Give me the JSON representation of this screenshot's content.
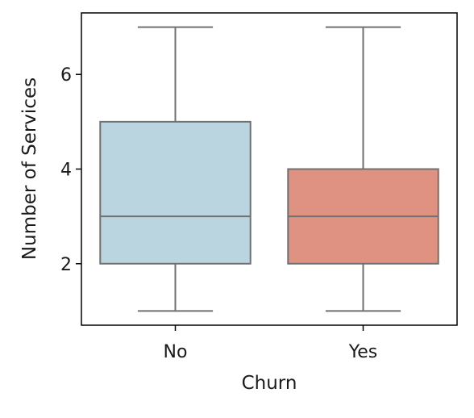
{
  "chart_data": {
    "type": "box",
    "title": "",
    "xlabel": "Churn",
    "ylabel": "Number of Services",
    "categories": [
      "No",
      "Yes"
    ],
    "boxes": [
      {
        "category": "No",
        "whisker_low": 1,
        "q1": 2,
        "median": 3,
        "q3": 5,
        "whisker_high": 7,
        "color": "#bad5e0"
      },
      {
        "category": "Yes",
        "whisker_low": 1,
        "q1": 2,
        "median": 3,
        "q3": 4,
        "whisker_high": 7,
        "color": "#e09282"
      }
    ],
    "ylim": [
      0.7,
      7.3
    ],
    "yticks": [
      2,
      4,
      6
    ],
    "grid": false,
    "line_color": "#707070"
  }
}
